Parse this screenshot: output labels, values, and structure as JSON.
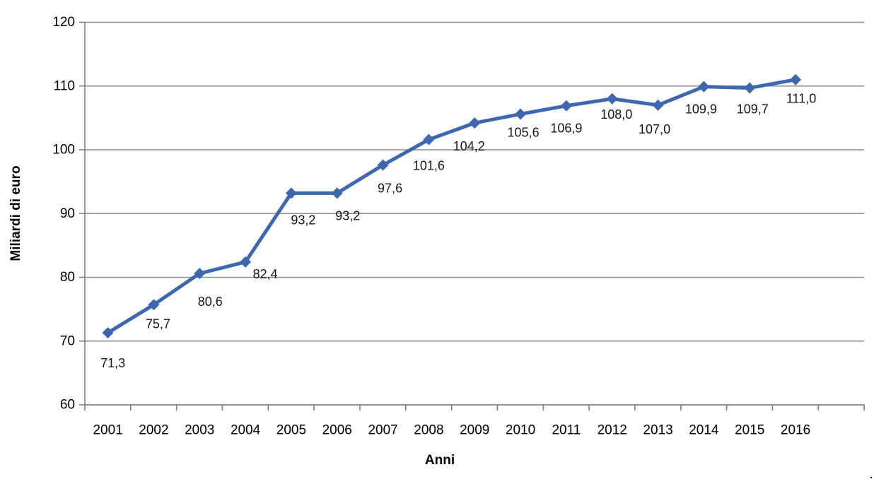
{
  "figure": {
    "corner_mark": "."
  },
  "chart_data": {
    "type": "line",
    "title": "",
    "xlabel": "Anni",
    "ylabel": "Miliardi di euro",
    "categories": [
      "2001",
      "2002",
      "2003",
      "2004",
      "2005",
      "2006",
      "2007",
      "2008",
      "2009",
      "2010",
      "2011",
      "2012",
      "2013",
      "2014",
      "2015",
      "2016"
    ],
    "series": [
      {
        "values": [
          71.3,
          75.7,
          80.6,
          82.4,
          93.2,
          93.2,
          97.6,
          101.6,
          104.2,
          105.6,
          106.9,
          108.0,
          107.0,
          109.9,
          109.7,
          111.0
        ],
        "labels": [
          "71,3",
          "75,7",
          "80,6",
          "82,4",
          "93,2",
          "93,2",
          "97,6",
          "101,6",
          "104,2",
          "105,6",
          "106,9",
          "108,0",
          "107,0",
          "109,9",
          "109,7",
          "111,0"
        ],
        "marker": "diamond"
      }
    ],
    "ylim": [
      60,
      120
    ],
    "ytick_step": 10,
    "ytick_labels": [
      "60",
      "70",
      "80",
      "90",
      "100",
      "110",
      "120"
    ],
    "grid": "horizontal-only",
    "legend_position": "none",
    "colors": {
      "line": "#3D67AF",
      "marker": "#3D67AF",
      "gridline": "#8C8C8C",
      "axis": "#7F7F7F",
      "tick_text": "#000000",
      "data_label_text": "#161616"
    }
  }
}
